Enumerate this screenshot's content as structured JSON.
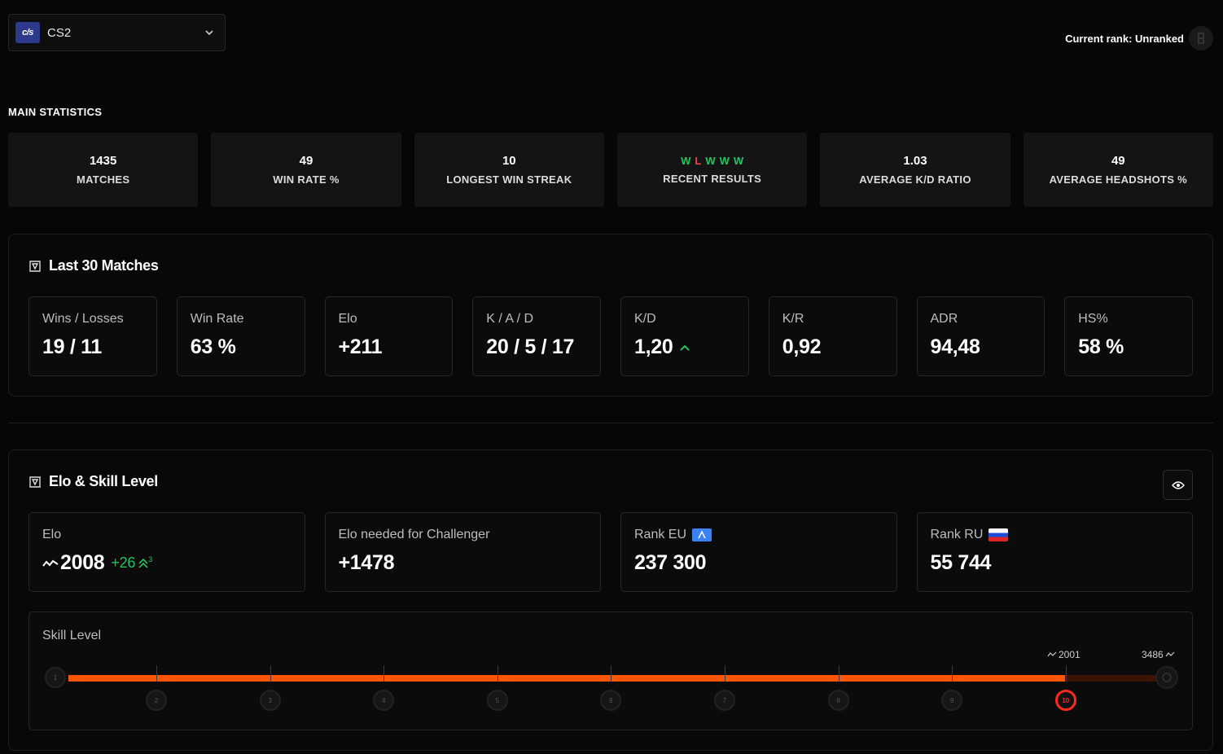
{
  "game_selector": {
    "logo": "cs",
    "name": "CS2",
    "icon": "chevron-down-icon"
  },
  "current_rank": {
    "text": "Current rank: Unranked",
    "icon": "rank-badge-icon"
  },
  "main_statistics": {
    "title": "MAIN STATISTICS",
    "cards": [
      {
        "value": "1435",
        "label": "MATCHES"
      },
      {
        "value": "49",
        "label": "WIN RATE %"
      },
      {
        "value": "10",
        "label": "LONGEST WIN STREAK"
      },
      {
        "value": null,
        "label": "RECENT RESULTS"
      },
      {
        "value": "1.03",
        "label": "AVERAGE K/D RATIO"
      },
      {
        "value": "49",
        "label": "AVERAGE HEADSHOTS %"
      }
    ],
    "recent_results": [
      "W",
      "L",
      "W",
      "W",
      "W"
    ]
  },
  "last_matches": {
    "title": "Last 30 Matches",
    "metrics": [
      {
        "label": "Wins / Losses",
        "value": "19 / 11"
      },
      {
        "label": "Win Rate",
        "value": "63 %"
      },
      {
        "label": "Elo",
        "value": "+211"
      },
      {
        "label": "K / A / D",
        "value": "20 / 5 / 17"
      },
      {
        "label": "K/D",
        "value": "1,20",
        "trend": "up"
      },
      {
        "label": "K/R",
        "value": "0,92"
      },
      {
        "label": "ADR",
        "value": "94,48"
      },
      {
        "label": "HS%",
        "value": "58 %"
      }
    ]
  },
  "elo_skill": {
    "title": "Elo & Skill Level",
    "toggle_icon": "eye-icon",
    "cards": [
      {
        "label": "Elo",
        "value": "2008",
        "delta": "+26",
        "delta_sup": "3"
      },
      {
        "label": "Elo needed for Challenger",
        "value": "+1478"
      },
      {
        "label": "Rank EU",
        "value": "237 300",
        "flag": "eu"
      },
      {
        "label": "Rank RU",
        "value": "55 744",
        "flag": "ru"
      }
    ],
    "skill_level": {
      "label": "Skill Level",
      "current_elo": "2001",
      "max_elo": "3486",
      "levels": [
        "1",
        "2",
        "3",
        "4",
        "5",
        "6",
        "7",
        "8",
        "9",
        "10"
      ],
      "current_level": "10",
      "progress": 0.916
    }
  },
  "colors": {
    "accent": "#ff5500",
    "win": "#22c55e",
    "loss": "#ef4444",
    "active_level": "#ff2a1a"
  }
}
